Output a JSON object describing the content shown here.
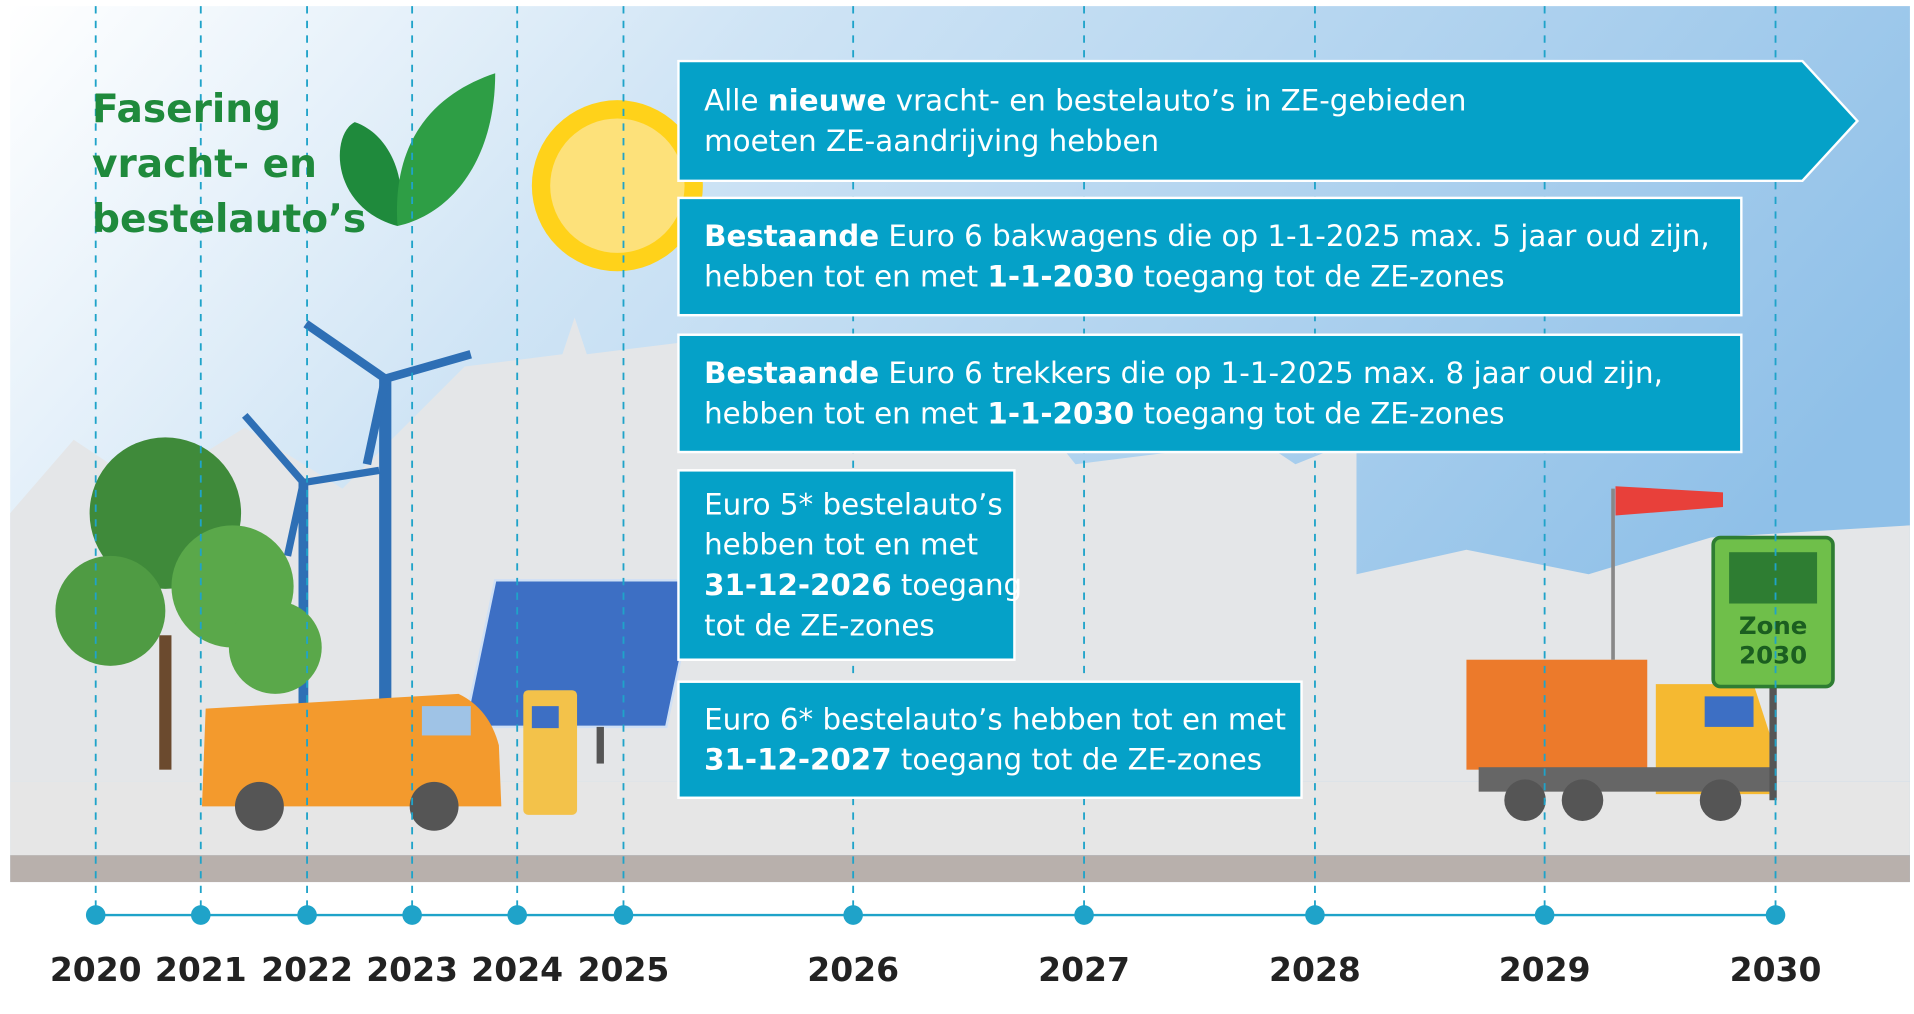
{
  "title": {
    "lines": [
      "Fasering",
      "vracht- en",
      "bestelauto’s"
    ]
  },
  "timeline": {
    "years": [
      "2020",
      "2021",
      "2022",
      "2023",
      "2024",
      "2025",
      "2026",
      "2027",
      "2028",
      "2029",
      "2030"
    ]
  },
  "boxes": [
    {
      "lines": [
        [
          {
            "text": "Alle ",
            "bold": false
          },
          {
            "text": "nieuwe",
            "bold": true
          },
          {
            "text": " vracht- en bestelauto’s in ZE-gebieden",
            "bold": false
          }
        ],
        [
          {
            "text": "moeten ZE-aandrijving hebben",
            "bold": false
          }
        ]
      ]
    },
    {
      "lines": [
        [
          {
            "text": "Bestaande",
            "bold": true
          },
          {
            "text": " Euro 6 bakwagens die op 1-1-2025 max. 5 jaar oud zijn,",
            "bold": false
          }
        ],
        [
          {
            "text": "hebben tot en met ",
            "bold": false
          },
          {
            "text": "1-1-2030",
            "bold": true
          },
          {
            "text": " toegang tot de ZE-zones",
            "bold": false
          }
        ]
      ]
    },
    {
      "lines": [
        [
          {
            "text": "Bestaande",
            "bold": true
          },
          {
            "text": " Euro 6 trekkers die op 1-1-2025 max. 8 jaar oud zijn,",
            "bold": false
          }
        ],
        [
          {
            "text": "hebben tot en met ",
            "bold": false
          },
          {
            "text": "1-1-2030",
            "bold": true
          },
          {
            "text": " toegang tot de ZE-zones",
            "bold": false
          }
        ]
      ]
    },
    {
      "lines": [
        [
          {
            "text": "Euro 5* bestelauto’s",
            "bold": false
          }
        ],
        [
          {
            "text": "hebben tot en met",
            "bold": false
          }
        ],
        [
          {
            "text": "31-12-2026",
            "bold": true
          },
          {
            "text": " toegang",
            "bold": false
          }
        ],
        [
          {
            "text": "tot de ZE-zones",
            "bold": false
          }
        ]
      ]
    },
    {
      "lines": [
        [
          {
            "text": "Euro 6* bestelauto’s hebben tot en met",
            "bold": false
          }
        ],
        [
          {
            "text": "31-12-2027",
            "bold": true
          },
          {
            "text": " toegang tot de ZE-zones",
            "bold": false
          }
        ]
      ]
    }
  ],
  "sign": {
    "lines": [
      "Zone",
      "2030"
    ]
  }
}
